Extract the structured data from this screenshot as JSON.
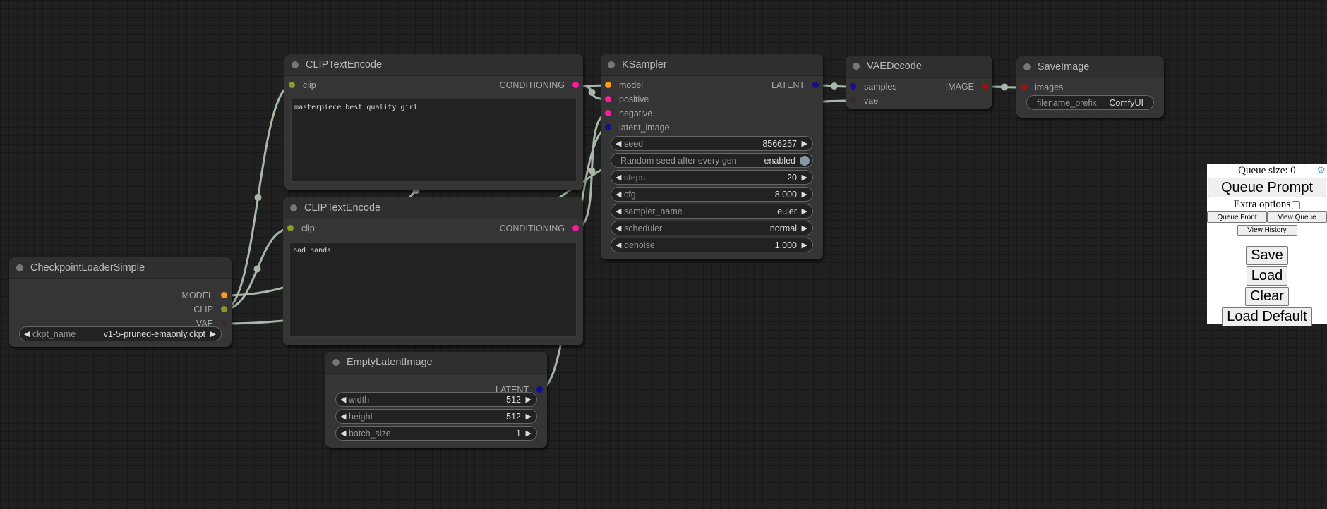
{
  "nodes": {
    "clip1": {
      "title": "CLIPTextEncode",
      "inputs": [
        {
          "name": "clip",
          "type": "CLIP"
        }
      ],
      "outputs": [
        {
          "name": "CONDITIONING",
          "type": "CONDITIONING"
        }
      ],
      "text": "masterpiece best quality girl"
    },
    "clip2": {
      "title": "CLIPTextEncode",
      "inputs": [
        {
          "name": "clip",
          "type": "CLIP"
        }
      ],
      "outputs": [
        {
          "name": "CONDITIONING",
          "type": "CONDITIONING"
        }
      ],
      "text": "bad hands"
    },
    "ckpt": {
      "title": "CheckpointLoaderSimple",
      "inputs": [],
      "outputs": [
        {
          "name": "MODEL",
          "type": "MODEL"
        },
        {
          "name": "CLIP",
          "type": "CLIP"
        },
        {
          "name": "VAE",
          "type": "VAE"
        }
      ],
      "widgets": [
        {
          "label": "ckpt_name",
          "value": "v1-5-pruned-emaonly.ckpt"
        }
      ]
    },
    "latent": {
      "title": "EmptyLatentImage",
      "inputs": [],
      "outputs": [
        {
          "name": "LATENT",
          "type": "LATENT"
        }
      ],
      "widgets": [
        {
          "label": "width",
          "value": "512"
        },
        {
          "label": "height",
          "value": "512"
        },
        {
          "label": "batch_size",
          "value": "1"
        }
      ]
    },
    "ksampler": {
      "title": "KSampler",
      "inputs": [
        {
          "name": "model",
          "type": "MODEL"
        },
        {
          "name": "positive",
          "type": "CONDITIONING"
        },
        {
          "name": "negative",
          "type": "CONDITIONING"
        },
        {
          "name": "latent_image",
          "type": "LATENT"
        }
      ],
      "outputs": [
        {
          "name": "LATENT",
          "type": "LATENT"
        }
      ],
      "widgets": [
        {
          "label": "seed",
          "value": "8566257"
        },
        {
          "label": "Random seed after every gen",
          "value": "enabled",
          "toggle": true
        },
        {
          "label": "steps",
          "value": "20"
        },
        {
          "label": "cfg",
          "value": "8.000"
        },
        {
          "label": "sampler_name",
          "value": "euler"
        },
        {
          "label": "scheduler",
          "value": "normal"
        },
        {
          "label": "denoise",
          "value": "1.000"
        }
      ]
    },
    "vae": {
      "title": "VAEDecode",
      "inputs": [
        {
          "name": "samples",
          "type": "LATENT"
        },
        {
          "name": "vae",
          "type": "VAE"
        }
      ],
      "outputs": [
        {
          "name": "IMAGE",
          "type": "IMAGE"
        }
      ]
    },
    "save": {
      "title": "SaveImage",
      "inputs": [
        {
          "name": "images",
          "type": "IMAGE"
        }
      ],
      "outputs": [],
      "widgets": [
        {
          "label": "filename_prefix",
          "value": "ComfyUI",
          "text": true
        }
      ]
    }
  },
  "slot_colors": {
    "MODEL": "#ff9a1a",
    "CLIP": "#8a9a2a",
    "VAE": "#3a2a2a",
    "CONDITIONING": "#ff1aa0",
    "LATENT": "#101090",
    "IMAGE": "#a01010"
  },
  "link_color": "#a8b8a8",
  "panel": {
    "queue_size": "Queue size: 0",
    "queue_prompt": "Queue Prompt",
    "extra_options": "Extra options",
    "queue_front": "Queue Front",
    "view_queue": "View Queue",
    "view_history": "View History",
    "save": "Save",
    "load": "Load",
    "clear": "Clear",
    "load_default": "Load Default"
  }
}
